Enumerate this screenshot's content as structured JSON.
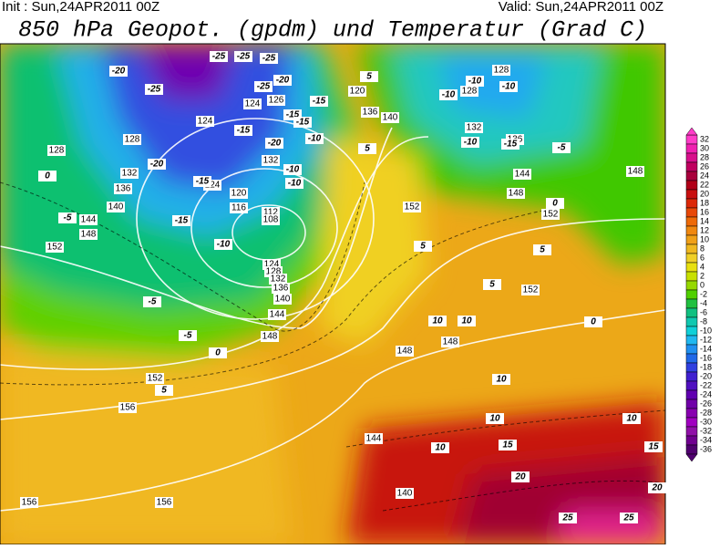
{
  "header": {
    "init": "Init : Sun,24APR2011 00Z",
    "valid": "Valid: Sun,24APR2011 00Z",
    "title": "850 hPa Geopot. (gpdm) und Temperatur (Grad C)"
  },
  "colorbar": {
    "labels": [
      "32",
      "30",
      "28",
      "26",
      "24",
      "22",
      "20",
      "18",
      "16",
      "14",
      "12",
      "10",
      "8",
      "6",
      "4",
      "2",
      "0",
      "-2",
      "-4",
      "-6",
      "-8",
      "-10",
      "-12",
      "-14",
      "-16",
      "-18",
      "-20",
      "-22",
      "-24",
      "-26",
      "-28",
      "-30",
      "-32",
      "-34",
      "-36"
    ],
    "colors": [
      "#ff3cc8",
      "#f020b0",
      "#d8108c",
      "#c00060",
      "#a8003c",
      "#b00018",
      "#c81010",
      "#dc2808",
      "#e84808",
      "#ee6a08",
      "#f08810",
      "#f0a018",
      "#f0b820",
      "#f0d028",
      "#e8e010",
      "#c8e000",
      "#96d800",
      "#50d000",
      "#20c040",
      "#10c080",
      "#10c8b0",
      "#10d0d8",
      "#20b8f0",
      "#2090f0",
      "#2068e8",
      "#3040e0",
      "#4020d0",
      "#5010c0",
      "#6000b0",
      "#7000a8",
      "#8800b0",
      "#a000c0",
      "#9010a8",
      "#700090",
      "#500070"
    ]
  },
  "map": {
    "geopotential_labels": [
      "128",
      "128",
      "132",
      "136",
      "140",
      "144",
      "148",
      "152",
      "124",
      "124",
      "120",
      "116",
      "112",
      "108",
      "124",
      "128",
      "132",
      "136",
      "140",
      "144",
      "148",
      "152",
      "156",
      "156",
      "156",
      "144",
      "140",
      "148",
      "148",
      "152",
      "152",
      "152",
      "148",
      "144",
      "148",
      "136",
      "132",
      "128",
      "128",
      "126",
      "124",
      "120",
      "136",
      "140",
      "132"
    ],
    "temperature_labels": [
      "-20",
      "-25",
      "-25",
      "-25",
      "-25",
      "-25",
      "-20",
      "-15",
      "-15",
      "-15",
      "-20",
      "-15",
      "-10",
      "-10",
      "-10",
      "-20",
      "-15",
      "-15",
      "-10",
      "-5",
      "-5",
      "-5",
      "0",
      "0",
      "5",
      "5",
      "5",
      "10",
      "10",
      "10",
      "10",
      "10",
      "10",
      "15",
      "20",
      "25",
      "25",
      "15",
      "20",
      "-10",
      "-10",
      "-10",
      "-10",
      "-15",
      "-5",
      "0",
      "5",
      "5",
      "5",
      "0"
    ]
  }
}
